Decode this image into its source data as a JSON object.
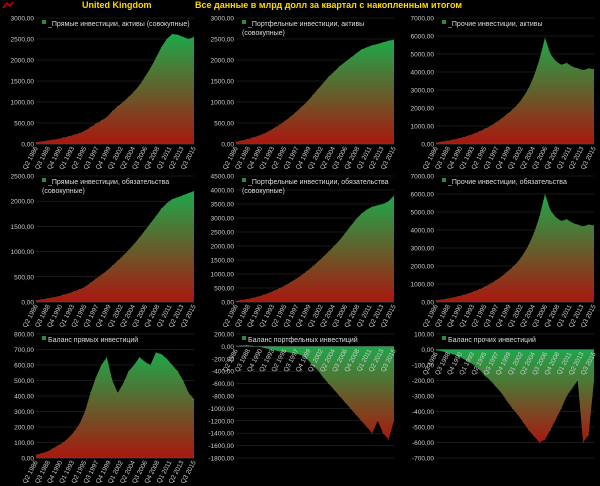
{
  "header": {
    "country": "United Kingdom",
    "subtitle": "Все данные в млрд долл за квартал с накопленным итогом"
  },
  "x_ticks": [
    "Q2 1986",
    "Q3 1988",
    "Q4 1990",
    "Q1 1993",
    "Q2 1995",
    "Q3 1997",
    "Q4 1999",
    "Q1 2002",
    "Q2 2004",
    "Q3 2006",
    "Q4 2008",
    "Q1 2011",
    "Q2 2013",
    "Q3 2015"
  ],
  "colors": {
    "top": "#1ea84a",
    "bottom": "#a8180f",
    "label": "#cccccc",
    "grid": "#333333"
  },
  "chart_data": [
    {
      "type": "area",
      "legend": "_Прямые инвестиции, активы (совокупные)",
      "yticks": [
        "0,00",
        "500,00",
        "1000,00",
        "1500,00",
        "2000,00",
        "2500,00",
        "3000,00"
      ],
      "ylim": [
        0,
        3000
      ],
      "values": [
        40,
        60,
        80,
        100,
        120,
        150,
        180,
        220,
        260,
        320,
        400,
        480,
        560,
        640,
        780,
        900,
        1000,
        1120,
        1250,
        1400,
        1600,
        1800,
        2050,
        2300,
        2500,
        2620,
        2600,
        2550,
        2500,
        2550
      ]
    },
    {
      "type": "area",
      "legend": "_Портфельные инвестиции, активы (совокупные)",
      "yticks": [
        "0,00",
        "500,00",
        "1000,00",
        "1500,00",
        "2000,00",
        "2500,00",
        "3000,00"
      ],
      "ylim": [
        0,
        3000
      ],
      "values": [
        50,
        80,
        110,
        150,
        190,
        240,
        300,
        380,
        460,
        550,
        650,
        760,
        880,
        1000,
        1150,
        1300,
        1450,
        1600,
        1720,
        1850,
        1950,
        2050,
        2150,
        2250,
        2300,
        2350,
        2380,
        2420,
        2460,
        2480
      ]
    },
    {
      "type": "area",
      "legend": "_Прочие инвестиции, активы",
      "yticks": [
        "0,00",
        "1000,00",
        "2000,00",
        "3000,00",
        "4000,00",
        "5000,00",
        "6000,00",
        "7000,00"
      ],
      "ylim": [
        0,
        7000
      ],
      "values": [
        80,
        120,
        170,
        230,
        300,
        380,
        470,
        580,
        700,
        850,
        1000,
        1200,
        1400,
        1650,
        1900,
        2200,
        2600,
        3100,
        3800,
        4700,
        5900,
        5000,
        4600,
        4400,
        4500,
        4300,
        4200,
        4100,
        4200,
        4150
      ]
    },
    {
      "type": "area",
      "legend": "_Прямые инвестиции, обязательства (совокупные)",
      "yticks": [
        "0,00",
        "500,00",
        "1000,00",
        "1500,00",
        "2000,00",
        "2500,00"
      ],
      "ylim": [
        0,
        2500
      ],
      "values": [
        30,
        50,
        70,
        90,
        110,
        140,
        170,
        210,
        250,
        300,
        380,
        460,
        540,
        620,
        720,
        820,
        920,
        1030,
        1150,
        1280,
        1420,
        1560,
        1700,
        1850,
        1960,
        2040,
        2080,
        2120,
        2160,
        2200
      ]
    },
    {
      "type": "area",
      "legend": "_Портфельные инвестиции, обязательства (совокупные)",
      "yticks": [
        "0,00",
        "500,00",
        "1000,00",
        "1500,00",
        "2000,00",
        "2500,00",
        "3000,00",
        "3500,00",
        "4000,00",
        "4500,00"
      ],
      "ylim": [
        0,
        4500
      ],
      "values": [
        40,
        70,
        100,
        140,
        190,
        250,
        320,
        400,
        490,
        590,
        700,
        820,
        950,
        1100,
        1260,
        1430,
        1610,
        1800,
        2000,
        2200,
        2450,
        2700,
        2950,
        3150,
        3300,
        3400,
        3450,
        3500,
        3600,
        3800
      ]
    },
    {
      "type": "area",
      "legend": "_Прочие инвестиции, обязательства",
      "yticks": [
        "0,00",
        "1000,00",
        "2000,00",
        "3000,00",
        "4000,00",
        "5000,00",
        "6000,00",
        "7000,00"
      ],
      "ylim": [
        0,
        7000
      ],
      "values": [
        90,
        130,
        180,
        240,
        310,
        390,
        480,
        590,
        710,
        860,
        1010,
        1210,
        1410,
        1660,
        1920,
        2230,
        2640,
        3150,
        3850,
        4750,
        6000,
        5100,
        4700,
        4500,
        4600,
        4400,
        4300,
        4200,
        4300,
        4250
      ]
    },
    {
      "type": "area",
      "legend": "Баланс прямых инвестиций",
      "yticks": [
        "0,00",
        "100,00",
        "200,00",
        "300,00",
        "400,00",
        "500,00",
        "600,00",
        "700,00",
        "800,00"
      ],
      "ylim": [
        0,
        800
      ],
      "values": [
        20,
        30,
        40,
        60,
        80,
        100,
        130,
        170,
        220,
        300,
        420,
        520,
        600,
        650,
        500,
        420,
        480,
        560,
        600,
        650,
        620,
        600,
        680,
        670,
        640,
        600,
        560,
        500,
        420,
        380
      ]
    },
    {
      "type": "area",
      "legend": "Баланс портфельных инвестиций",
      "yticks": [
        "-1800,00",
        "-1600,00",
        "-1400,00",
        "-1200,00",
        "-1000,00",
        "-800,00",
        "-600,00",
        "-400,00",
        "-200,00",
        "0,00",
        "200,00"
      ],
      "ylim": [
        -1800,
        200
      ],
      "values": [
        10,
        15,
        20,
        10,
        0,
        -20,
        -40,
        -60,
        -80,
        -90,
        -100,
        -120,
        -140,
        -200,
        -300,
        -380,
        -500,
        -600,
        -700,
        -800,
        -900,
        -1000,
        -1100,
        -1200,
        -1300,
        -1400,
        -1200,
        -1400,
        -1500,
        -1200
      ]
    },
    {
      "type": "area",
      "legend": "Баланс прочих инвестиций",
      "yticks": [
        "-700,00",
        "-600,00",
        "-500,00",
        "-400,00",
        "-300,00",
        "-200,00",
        "-100,00",
        "0,00",
        "100,00"
      ],
      "ylim": [
        -700,
        100
      ],
      "values": [
        -5,
        -10,
        -20,
        -30,
        -40,
        -60,
        -80,
        -100,
        -130,
        -170,
        -200,
        -240,
        -280,
        -330,
        -380,
        -420,
        -470,
        -520,
        -560,
        -600,
        -580,
        -520,
        -450,
        -380,
        -300,
        -250,
        -200,
        -600,
        -550,
        -200
      ]
    }
  ]
}
